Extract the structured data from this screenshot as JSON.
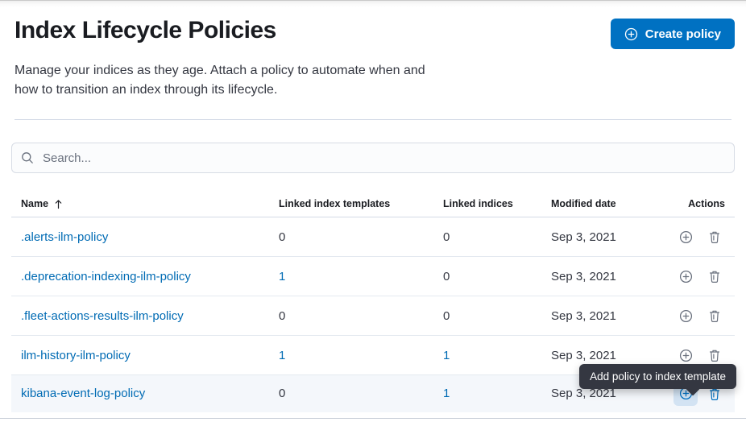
{
  "page": {
    "title": "Index Lifecycle Policies",
    "description_line1": "Manage your indices as they age. Attach a policy to automate when and",
    "description_line2": "how to transition an index through its lifecycle."
  },
  "header": {
    "create_button_label": "Create policy",
    "create_button_icon": "plus-in-circle-icon"
  },
  "search": {
    "placeholder": "Search...",
    "value": "",
    "icon": "search-icon"
  },
  "table": {
    "columns": [
      "Name",
      "Linked index templates",
      "Linked indices",
      "Modified date",
      "Actions"
    ],
    "sort": {
      "column": "Name",
      "direction": "ascending"
    },
    "row_action_icons": [
      "plus-in-circle-icon",
      "trash-icon"
    ],
    "rows": [
      {
        "name": ".alerts-ilm-policy",
        "linked_templates": "0",
        "templates_link": false,
        "linked_indices": "0",
        "indices_link": false,
        "modified": "Sep 3, 2021",
        "highlighted": false,
        "actions_active": false
      },
      {
        "name": ".deprecation-indexing-ilm-policy",
        "linked_templates": "1",
        "templates_link": true,
        "linked_indices": "0",
        "indices_link": false,
        "modified": "Sep 3, 2021",
        "highlighted": false,
        "actions_active": false
      },
      {
        "name": ".fleet-actions-results-ilm-policy",
        "linked_templates": "0",
        "templates_link": false,
        "linked_indices": "0",
        "indices_link": false,
        "modified": "Sep 3, 2021",
        "highlighted": false,
        "actions_active": false
      },
      {
        "name": "ilm-history-ilm-policy",
        "linked_templates": "1",
        "templates_link": true,
        "linked_indices": "1",
        "indices_link": true,
        "modified": "Sep 3, 2021",
        "highlighted": false,
        "actions_active": false
      },
      {
        "name": "kibana-event-log-policy",
        "linked_templates": "0",
        "templates_link": false,
        "linked_indices": "1",
        "indices_link": true,
        "modified": "Sep 3, 2021",
        "highlighted": true,
        "actions_active": true
      }
    ]
  },
  "tooltip": {
    "text": "Add policy to index template"
  },
  "colors": {
    "primary_button": "#0071c2",
    "link": "#006bb4",
    "text": "#343741",
    "heading": "#1a1c21",
    "border": "#d3dae6",
    "icon_gray": "#69707d",
    "row_highlight": "#f4f7fb",
    "plus_hover_bg": "#d3e3f3",
    "tooltip_bg": "#343741"
  }
}
